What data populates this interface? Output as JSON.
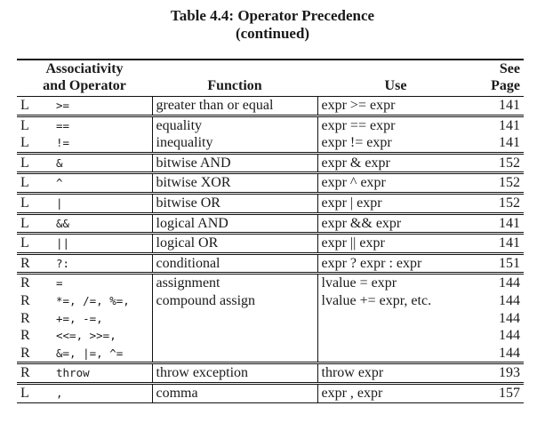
{
  "caption": {
    "line1": "Table 4.4: Operator Precedence",
    "line2": "(continued)"
  },
  "headers": {
    "assoc_line1": "Associativity",
    "assoc_line2": "and Operator",
    "function": "Function",
    "use": "Use",
    "page_line1": "See",
    "page_line2": "Page"
  },
  "groups": [
    {
      "rows": [
        {
          "assoc": "L",
          "op": ">=",
          "fn": "greater than or equal",
          "use": "expr >= expr",
          "page": "141"
        }
      ]
    },
    {
      "rows": [
        {
          "assoc": "L",
          "op": "==",
          "fn": "equality",
          "use": "expr == expr",
          "page": "141"
        },
        {
          "assoc": "L",
          "op": "!=",
          "fn": "inequality",
          "use": "expr != expr",
          "page": "141"
        }
      ]
    },
    {
      "rows": [
        {
          "assoc": "L",
          "op": "&",
          "fn": "bitwise AND",
          "use": "expr & expr",
          "page": "152"
        }
      ]
    },
    {
      "rows": [
        {
          "assoc": "L",
          "op": "^",
          "fn": "bitwise XOR",
          "use": "expr ^ expr",
          "page": "152"
        }
      ]
    },
    {
      "rows": [
        {
          "assoc": "L",
          "op": "|",
          "fn": "bitwise OR",
          "use": "expr | expr",
          "page": "152"
        }
      ]
    },
    {
      "rows": [
        {
          "assoc": "L",
          "op": "&&",
          "fn": "logical AND",
          "use": "expr && expr",
          "page": "141"
        }
      ]
    },
    {
      "rows": [
        {
          "assoc": "L",
          "op": "||",
          "fn": "logical OR",
          "use": "expr || expr",
          "page": "141"
        }
      ]
    },
    {
      "rows": [
        {
          "assoc": "R",
          "op": "?:",
          "fn": "conditional",
          "use": "expr ? expr : expr",
          "page": "151"
        }
      ]
    },
    {
      "rows": [
        {
          "assoc": "R",
          "op": "=",
          "fn": "assignment",
          "use": "lvalue = expr",
          "page": "144"
        },
        {
          "assoc": "R",
          "op": "*=, /=, %=,",
          "fn": "compound assign",
          "use": "lvalue += expr, etc.",
          "page": "144"
        },
        {
          "assoc": "R",
          "op": "+=, -=,",
          "fn": "",
          "use": "",
          "page": "144"
        },
        {
          "assoc": "R",
          "op": "<<=, >>=,",
          "fn": "",
          "use": "",
          "page": "144"
        },
        {
          "assoc": "R",
          "op": "&=, |=, ^=",
          "fn": "",
          "use": "",
          "page": "144"
        }
      ]
    },
    {
      "rows": [
        {
          "assoc": "R",
          "op": "throw",
          "fn": "throw exception",
          "use": "throw expr",
          "page": "193"
        }
      ]
    },
    {
      "rows": [
        {
          "assoc": "L",
          "op": ",",
          "fn": "comma",
          "use": "expr , expr",
          "page": "157"
        }
      ]
    }
  ]
}
